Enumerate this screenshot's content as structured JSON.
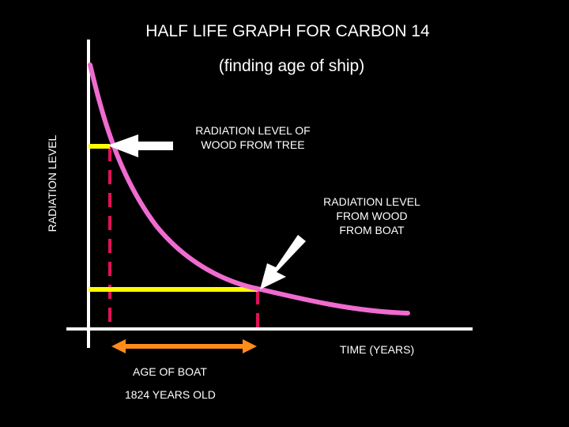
{
  "title": "HALF LIFE GRAPH FOR  CARBON 14",
  "subtitle": "(finding age of ship)",
  "y_axis_label": "RADIATION LEVEL",
  "x_axis_label": "TIME (YEARS)",
  "callouts": {
    "tree": [
      "RADIATION LEVEL OF",
      "WOOD FROM TREE"
    ],
    "boat": [
      "RADIATION LEVEL",
      "FROM WOOD",
      "FROM BOAT"
    ]
  },
  "age": {
    "label": "AGE OF BOAT",
    "value": "1824 YEARS OLD"
  },
  "colors": {
    "background": "#000000",
    "text": "#ffffff",
    "axes": "#ffffff",
    "decay_curve": "#f06bd0",
    "level_markers": "#ffff00",
    "dashed_guides": "#e0105a",
    "age_arrow": "#ff8c1a",
    "pointer_arrows": "#ffffff"
  }
}
